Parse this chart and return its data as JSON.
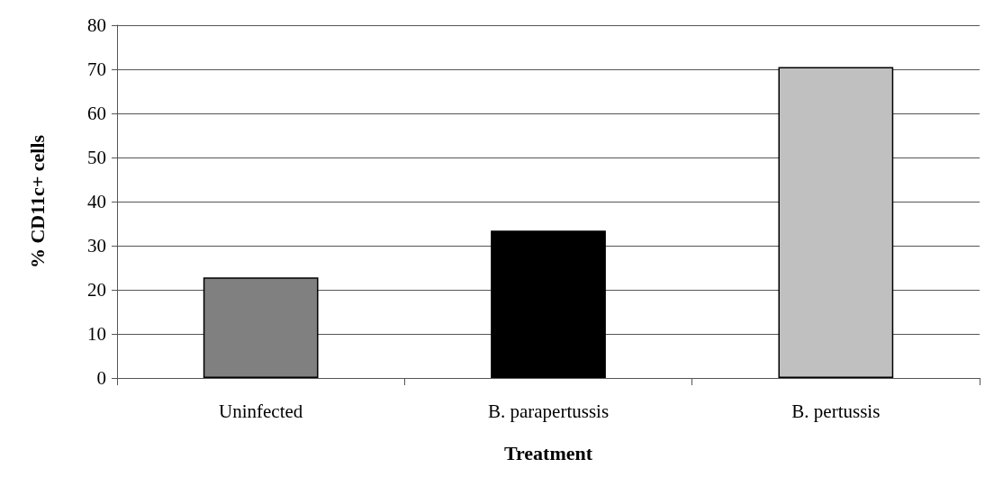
{
  "chart_data": {
    "type": "bar",
    "xlabel": "Treatment",
    "ylabel": "% CD11c+ cells",
    "categories": [
      "Uninfected",
      "B. parapertussis",
      "B. pertussis"
    ],
    "values": [
      22.8,
      33.4,
      70.5
    ],
    "colors": [
      "#808080",
      "#000000",
      "#c0c0c0"
    ],
    "ylim": [
      0,
      80
    ],
    "yticks": [
      0,
      10,
      20,
      30,
      40,
      50,
      60,
      70,
      80
    ],
    "grid": "y"
  }
}
